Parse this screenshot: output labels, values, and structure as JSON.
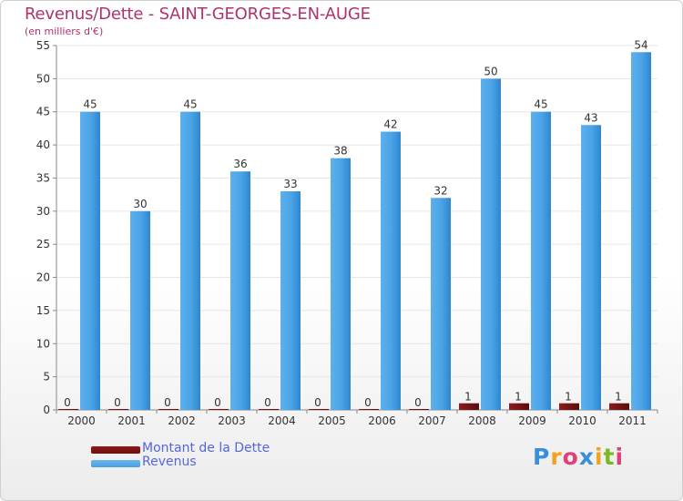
{
  "header": {
    "title": "Revenus/Dette - SAINT-GEORGES-EN-AUGE",
    "subtitle": "(en milliers d'€)"
  },
  "colors": {
    "title": "#b0336b",
    "dette": "#6e1010",
    "revenus": "#4a9fe0",
    "legend_text": "#5566dd",
    "grid": "#e6e6e6",
    "axis_text": "#333333"
  },
  "legend": {
    "items": [
      {
        "label": "Montant de la Dette",
        "color": "#6e1010"
      },
      {
        "label": "Revenus",
        "color": "#4a9fe0"
      }
    ]
  },
  "logo": {
    "text": "Proxiti",
    "letter_colors": [
      "#3b8fd9",
      "#f2a21e",
      "#e0407a",
      "#3b8fd9",
      "#f2a21e",
      "#7ab82a",
      "#e0407a"
    ]
  },
  "chart_data": {
    "type": "bar",
    "categories": [
      "2000",
      "2001",
      "2002",
      "2003",
      "2004",
      "2005",
      "2006",
      "2007",
      "2008",
      "2009",
      "2010",
      "2011"
    ],
    "series": [
      {
        "name": "Montant de la Dette",
        "values": [
          0,
          0,
          0,
          0,
          0,
          0,
          0,
          0,
          1,
          1,
          1,
          1
        ]
      },
      {
        "name": "Revenus",
        "values": [
          45,
          30,
          45,
          36,
          33,
          38,
          42,
          32,
          50,
          45,
          43,
          54
        ]
      }
    ],
    "ylim": [
      0,
      55
    ],
    "yticks": [
      0,
      5,
      10,
      15,
      20,
      25,
      30,
      35,
      40,
      45,
      50,
      55
    ],
    "grid": true,
    "data_labels": true,
    "legend_position": "bottom-left"
  }
}
